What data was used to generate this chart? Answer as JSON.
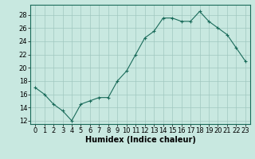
{
  "x": [
    0,
    1,
    2,
    3,
    4,
    5,
    6,
    7,
    8,
    9,
    10,
    11,
    12,
    13,
    14,
    15,
    16,
    17,
    18,
    19,
    20,
    21,
    22,
    23
  ],
  "y": [
    17,
    16,
    14.5,
    13.5,
    12,
    14.5,
    15,
    15.5,
    15.5,
    18,
    19.5,
    22,
    24.5,
    25.5,
    27.5,
    27.5,
    27,
    27,
    28.5,
    27,
    26,
    25,
    23,
    21
  ],
  "line_color": "#1a6b5a",
  "marker": "+",
  "background_color": "#c8e8e0",
  "grid_color": "#a0c8c0",
  "xlabel": "Humidex (Indice chaleur)",
  "ylabel_ticks": [
    12,
    14,
    16,
    18,
    20,
    22,
    24,
    26,
    28
  ],
  "xlim": [
    -0.5,
    23.5
  ],
  "ylim": [
    11.5,
    29.5
  ],
  "xlabel_fontsize": 7,
  "tick_fontsize": 6,
  "axis_color": "#1a6b5a",
  "spine_color": "#1a6b5a"
}
